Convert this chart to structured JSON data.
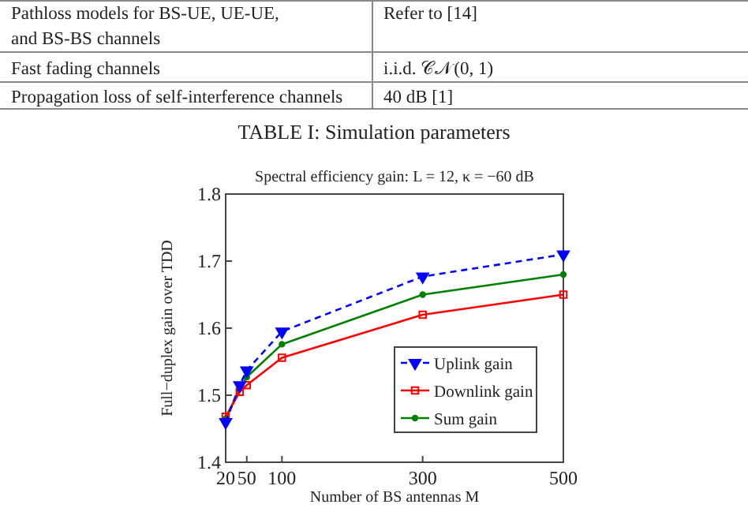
{
  "chart_data": {
    "type": "line",
    "title": "Spectral efficiency gain: L = 12, κ = −60 dB",
    "xlabel": "Number of BS antennas M",
    "ylabel": "Full−duplex gain over TDD",
    "annotations": [
      "Pathloss models for BS-UE, UE-UE, and BS-BS channels",
      "Refer to [14]",
      "Fast fading channels",
      "i.i.d. 𝒞𝒩(0, 1)",
      "Propagation loss of self-interference channels",
      "40 dB [1]",
      "TABLE I: Simulation parameters"
    ],
    "x": [
      20,
      40,
      50,
      100,
      300,
      500
    ],
    "xlim": [
      20,
      500
    ],
    "xticks": [
      20,
      50,
      100,
      300,
      500
    ],
    "ylim": [
      1.4,
      1.8
    ],
    "yticks": [
      1.4,
      1.5,
      1.6,
      1.7,
      1.8
    ],
    "legend": "bottom right",
    "series": [
      {
        "name": "Uplink gain",
        "color": "#0000ff",
        "marker": "triangle",
        "line_style": "dashed",
        "values": [
          1.46,
          1.515,
          1.537,
          1.595,
          1.677,
          1.71
        ]
      },
      {
        "name": "Downlink gain",
        "color": "#ff0000",
        "marker": "square",
        "line_style": "solid",
        "values": [
          1.468,
          1.505,
          1.515,
          1.556,
          1.62,
          1.65
        ]
      },
      {
        "name": "Sum gain",
        "color": "#008000",
        "marker": "circle",
        "line_style": "solid",
        "values": [
          1.465,
          1.51,
          1.527,
          1.576,
          1.65,
          1.68
        ]
      }
    ]
  }
}
